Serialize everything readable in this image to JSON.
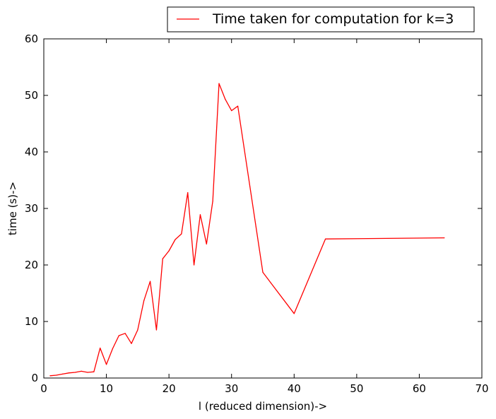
{
  "chart_data": {
    "type": "line",
    "title": "",
    "xlabel": "l (reduced dimension)->",
    "ylabel": "time (s)->",
    "xlim": [
      0,
      70
    ],
    "ylim": [
      0,
      60
    ],
    "xticks": [
      0,
      10,
      20,
      30,
      40,
      50,
      60,
      70
    ],
    "yticks": [
      0,
      10,
      20,
      30,
      40,
      50,
      60
    ],
    "xtick_labels": [
      "0",
      "10",
      "20",
      "30",
      "40",
      "50",
      "60",
      "70"
    ],
    "ytick_labels": [
      "0",
      "10",
      "20",
      "30",
      "40",
      "50",
      "60"
    ],
    "grid": false,
    "legend_position": "top-right (outside, above plot)",
    "series": [
      {
        "name": "Time taken for computation for k=3",
        "color": "#ff0000",
        "x": [
          1,
          2,
          3,
          4,
          5,
          6,
          7,
          8,
          9,
          10,
          11,
          12,
          13,
          14,
          15,
          16,
          17,
          18,
          19,
          20,
          21,
          22,
          23,
          24,
          25,
          26,
          27,
          28,
          29,
          30,
          31,
          35,
          40,
          45,
          64
        ],
        "y": [
          0.4,
          0.5,
          0.7,
          0.9,
          1.0,
          1.2,
          1.0,
          1.1,
          5.3,
          2.4,
          5.2,
          7.5,
          7.9,
          6.1,
          8.5,
          13.7,
          17.1,
          8.5,
          21.1,
          22.5,
          24.5,
          25.5,
          32.8,
          20.0,
          28.9,
          23.7,
          31.3,
          52.1,
          49.3,
          47.3,
          48.1,
          18.7,
          11.4,
          24.6,
          24.8
        ]
      }
    ]
  }
}
